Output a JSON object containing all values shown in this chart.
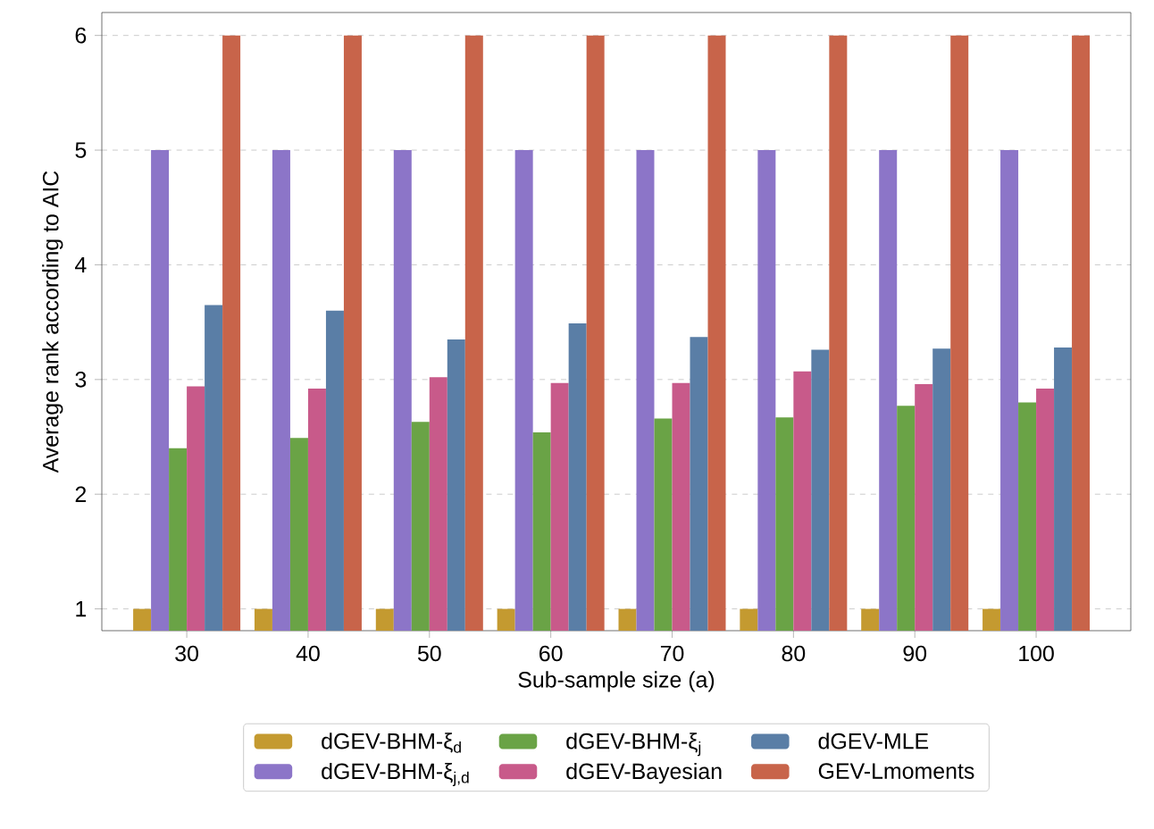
{
  "chart_data": {
    "type": "bar",
    "xlabel": "Sub-sample size (a)",
    "ylabel": "Average rank according to AIC",
    "categories": [
      "30",
      "40",
      "50",
      "60",
      "70",
      "80",
      "90",
      "100"
    ],
    "series": [
      {
        "name": "dGEV-BHM-ξ$_{d}$",
        "color": "#c49a30",
        "values": [
          1,
          1,
          1,
          1,
          1,
          1,
          1,
          1
        ]
      },
      {
        "name": "dGEV-BHM-ξ$_{j,d}$",
        "color": "#8c75c8",
        "values": [
          5,
          5,
          5,
          5,
          5,
          5,
          5,
          5
        ]
      },
      {
        "name": "dGEV-BHM-ξ$_{j}$",
        "color": "#6aa346",
        "values": [
          2.4,
          2.49,
          2.63,
          2.54,
          2.66,
          2.67,
          2.77,
          2.8
        ]
      },
      {
        "name": "dGEV-Bayesian",
        "color": "#c85a8a",
        "values": [
          2.94,
          2.92,
          3.02,
          2.97,
          2.97,
          3.07,
          2.96,
          2.92
        ]
      },
      {
        "name": "dGEV-MLE",
        "color": "#5a7ea6",
        "values": [
          3.65,
          3.6,
          3.35,
          3.49,
          3.37,
          3.26,
          3.27,
          3.28
        ]
      },
      {
        "name": "GEV-Lmoments",
        "color": "#c8644a",
        "values": [
          6,
          6,
          6,
          6,
          6,
          6,
          6,
          6
        ]
      }
    ],
    "ylim": [
      0.81,
      6.2
    ],
    "yticks": [
      1,
      2,
      3,
      4,
      5,
      6
    ],
    "grid": "y",
    "legend": "bottom"
  }
}
